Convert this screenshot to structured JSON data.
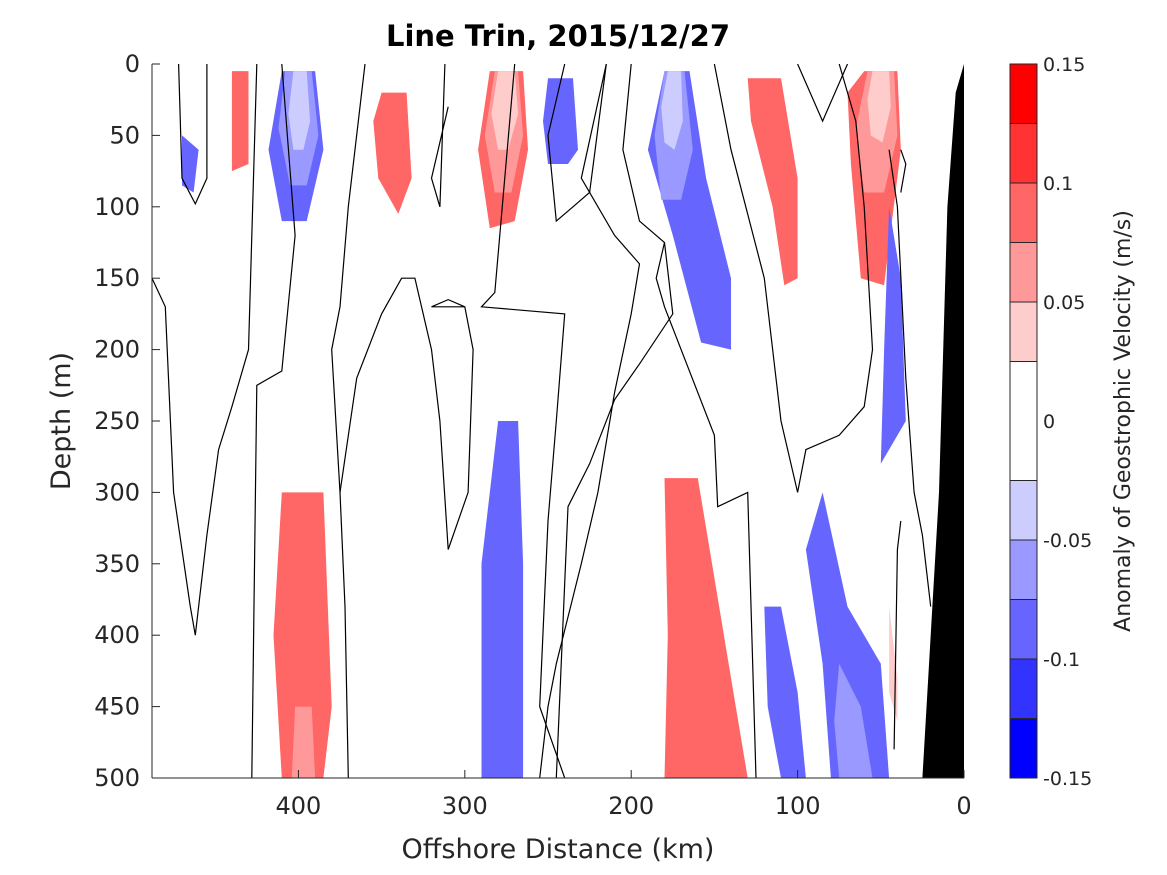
{
  "chart_data": {
    "type": "heatmap",
    "subtype": "filled contour section",
    "title": "Line Trin, 2015/12/27",
    "xlabel": "Offshore Distance (km)",
    "ylabel": "Depth (m)",
    "xlim": [
      488,
      0
    ],
    "x_reversed": true,
    "ylim": [
      0,
      500
    ],
    "y_reversed": true,
    "x_ticks": [
      400,
      300,
      200,
      100,
      0
    ],
    "y_ticks": [
      0,
      50,
      100,
      150,
      200,
      250,
      300,
      350,
      400,
      450,
      500
    ],
    "colorbar": {
      "label": "Anomaly of Geostrophic Velocity (m/s)",
      "limits": [
        -0.15,
        0.15
      ],
      "tick_labels": [
        "0.15",
        "0.1",
        "0.05",
        "0",
        "-0.05",
        "-0.1",
        "-0.15"
      ],
      "tick_values": [
        0.15,
        0.1,
        0.05,
        0,
        -0.05,
        -0.1,
        -0.15
      ],
      "levels": [
        -0.15,
        -0.125,
        -0.1,
        -0.075,
        -0.05,
        -0.025,
        0.025,
        0.05,
        0.075,
        0.1,
        0.125,
        0.15
      ],
      "band_colors": [
        "#0000ff",
        "#3333ff",
        "#6666ff",
        "#9999ff",
        "#ccccff",
        "#ffffff",
        "#ffcccc",
        "#ff9999",
        "#ff6666",
        "#ff3333",
        "#ff0000"
      ]
    },
    "features": [
      {
        "kind": "negative",
        "level": 3,
        "points": [
          [
            410,
            5
          ],
          [
            390,
            5
          ],
          [
            385,
            60
          ],
          [
            395,
            110
          ],
          [
            410,
            110
          ],
          [
            418,
            60
          ]
        ]
      },
      {
        "kind": "negative",
        "level": 2,
        "points": [
          [
            408,
            5
          ],
          [
            392,
            5
          ],
          [
            388,
            50
          ],
          [
            395,
            85
          ],
          [
            405,
            85
          ],
          [
            412,
            45
          ]
        ]
      },
      {
        "kind": "negative",
        "level": 1,
        "points": [
          [
            403,
            5
          ],
          [
            395,
            5
          ],
          [
            393,
            40
          ],
          [
            397,
            60
          ],
          [
            403,
            60
          ],
          [
            406,
            35
          ]
        ]
      },
      {
        "kind": "positive",
        "level": 3,
        "points": [
          [
            285,
            5
          ],
          [
            265,
            5
          ],
          [
            262,
            60
          ],
          [
            270,
            110
          ],
          [
            285,
            115
          ],
          [
            292,
            60
          ]
        ]
      },
      {
        "kind": "positive",
        "level": 2,
        "points": [
          [
            282,
            5
          ],
          [
            268,
            5
          ],
          [
            265,
            50
          ],
          [
            272,
            90
          ],
          [
            282,
            90
          ],
          [
            288,
            50
          ]
        ]
      },
      {
        "kind": "positive",
        "level": 1,
        "points": [
          [
            280,
            5
          ],
          [
            270,
            5
          ],
          [
            268,
            35
          ],
          [
            274,
            60
          ],
          [
            280,
            60
          ],
          [
            284,
            35
          ]
        ]
      },
      {
        "kind": "negative",
        "level": 3,
        "points": [
          [
            180,
            5
          ],
          [
            165,
            5
          ],
          [
            155,
            80
          ],
          [
            140,
            150
          ],
          [
            140,
            200
          ],
          [
            158,
            195
          ],
          [
            175,
            120
          ],
          [
            190,
            60
          ]
        ]
      },
      {
        "kind": "negative",
        "level": 2,
        "points": [
          [
            180,
            5
          ],
          [
            168,
            5
          ],
          [
            163,
            60
          ],
          [
            170,
            95
          ],
          [
            182,
            95
          ],
          [
            186,
            50
          ]
        ]
      },
      {
        "kind": "negative",
        "level": 1,
        "points": [
          [
            178,
            5
          ],
          [
            170,
            5
          ],
          [
            169,
            40
          ],
          [
            174,
            60
          ],
          [
            180,
            55
          ],
          [
            182,
            30
          ]
        ]
      },
      {
        "kind": "positive",
        "level": 3,
        "points": [
          [
            60,
            5
          ],
          [
            40,
            5
          ],
          [
            38,
            60
          ],
          [
            48,
            155
          ],
          [
            62,
            150
          ],
          [
            68,
            70
          ],
          [
            70,
            20
          ]
        ]
      },
      {
        "kind": "positive",
        "level": 2,
        "points": [
          [
            58,
            5
          ],
          [
            42,
            5
          ],
          [
            40,
            50
          ],
          [
            48,
            90
          ],
          [
            60,
            90
          ],
          [
            65,
            45
          ]
        ]
      },
      {
        "kind": "positive",
        "level": 1,
        "points": [
          [
            55,
            5
          ],
          [
            45,
            5
          ],
          [
            44,
            30
          ],
          [
            49,
            55
          ],
          [
            56,
            50
          ],
          [
            58,
            25
          ]
        ]
      },
      {
        "kind": "positive",
        "level": 3,
        "points": [
          [
            350,
            20
          ],
          [
            335,
            20
          ],
          [
            332,
            80
          ],
          [
            340,
            105
          ],
          [
            352,
            80
          ],
          [
            355,
            40
          ]
        ]
      },
      {
        "kind": "negative",
        "level": 3,
        "points": [
          [
            250,
            10
          ],
          [
            235,
            10
          ],
          [
            232,
            60
          ],
          [
            238,
            70
          ],
          [
            250,
            70
          ],
          [
            253,
            40
          ]
        ]
      },
      {
        "kind": "positive",
        "level": 3,
        "points": [
          [
            130,
            10
          ],
          [
            110,
            10
          ],
          [
            100,
            80
          ],
          [
            100,
            150
          ],
          [
            108,
            155
          ],
          [
            115,
            100
          ],
          [
            128,
            40
          ]
        ]
      },
      {
        "kind": "negative",
        "level": 3,
        "points": [
          [
            85,
            300
          ],
          [
            70,
            380
          ],
          [
            50,
            420
          ],
          [
            45,
            500
          ],
          [
            80,
            500
          ],
          [
            85,
            420
          ],
          [
            95,
            340
          ]
        ]
      },
      {
        "kind": "negative",
        "level": 2,
        "points": [
          [
            75,
            420
          ],
          [
            62,
            450
          ],
          [
            55,
            500
          ],
          [
            75,
            500
          ],
          [
            78,
            460
          ]
        ]
      },
      {
        "kind": "positive",
        "level": 3,
        "points": [
          [
            410,
            300
          ],
          [
            385,
            300
          ],
          [
            380,
            450
          ],
          [
            385,
            500
          ],
          [
            410,
            500
          ],
          [
            415,
            400
          ]
        ]
      },
      {
        "kind": "positive",
        "level": 2,
        "points": [
          [
            402,
            450
          ],
          [
            392,
            450
          ],
          [
            390,
            500
          ],
          [
            404,
            500
          ]
        ]
      },
      {
        "kind": "negative",
        "level": 3,
        "points": [
          [
            280,
            250
          ],
          [
            268,
            250
          ],
          [
            265,
            350
          ],
          [
            265,
            500
          ],
          [
            290,
            500
          ],
          [
            290,
            350
          ]
        ]
      },
      {
        "kind": "positive",
        "level": 3,
        "points": [
          [
            180,
            290
          ],
          [
            160,
            290
          ],
          [
            140,
            430
          ],
          [
            130,
            500
          ],
          [
            180,
            500
          ],
          [
            178,
            400
          ]
        ]
      },
      {
        "kind": "negative",
        "level": 3,
        "points": [
          [
            120,
            380
          ],
          [
            110,
            380
          ],
          [
            100,
            440
          ],
          [
            95,
            500
          ],
          [
            110,
            500
          ],
          [
            118,
            450
          ]
        ]
      },
      {
        "kind": "negative",
        "level": 3,
        "points": [
          [
            45,
            100
          ],
          [
            38,
            150
          ],
          [
            35,
            250
          ],
          [
            50,
            280
          ],
          [
            48,
            200
          ]
        ]
      },
      {
        "kind": "negative",
        "level": 3,
        "points": [
          [
            470,
            50
          ],
          [
            460,
            60
          ],
          [
            463,
            90
          ],
          [
            470,
            85
          ]
        ]
      },
      {
        "kind": "positive",
        "level": 3,
        "points": [
          [
            440,
            5
          ],
          [
            430,
            5
          ],
          [
            430,
            70
          ],
          [
            440,
            75
          ]
        ]
      },
      {
        "kind": "positive",
        "level": 1,
        "points": [
          [
            45,
            380
          ],
          [
            40,
            430
          ],
          [
            40,
            460
          ],
          [
            45,
            440
          ]
        ]
      }
    ],
    "zero_contours": [
      [
        [
          472,
          0
        ],
        [
          470,
          80
        ],
        [
          462,
          98
        ],
        [
          455,
          80
        ],
        [
          455,
          0
        ]
      ],
      [
        [
          488,
          150
        ],
        [
          480,
          170
        ],
        [
          475,
          300
        ],
        [
          465,
          380
        ],
        [
          462,
          400
        ],
        [
          455,
          330
        ],
        [
          448,
          270
        ],
        [
          440,
          240
        ],
        [
          430,
          200
        ],
        [
          425,
          0
        ]
      ],
      [
        [
          410,
          0
        ],
        [
          402,
          120
        ],
        [
          410,
          215
        ],
        [
          425,
          225
        ],
        [
          428,
          500
        ]
      ],
      [
        [
          360,
          0
        ],
        [
          370,
          100
        ],
        [
          375,
          170
        ],
        [
          380,
          200
        ],
        [
          375,
          300
        ],
        [
          372,
          380
        ],
        [
          370,
          500
        ]
      ],
      [
        [
          310,
          30
        ],
        [
          320,
          80
        ],
        [
          315,
          100
        ],
        [
          312,
          0
        ]
      ],
      [
        [
          310,
          340
        ],
        [
          315,
          250
        ],
        [
          320,
          200
        ],
        [
          330,
          150
        ],
        [
          338,
          150
        ],
        [
          350,
          175
        ],
        [
          365,
          220
        ],
        [
          375,
          300
        ]
      ],
      [
        [
          310,
          340
        ],
        [
          298,
          300
        ],
        [
          295,
          200
        ],
        [
          300,
          170
        ],
        [
          310,
          165
        ],
        [
          320,
          170
        ],
        [
          300,
          170
        ]
      ],
      [
        [
          270,
          0
        ],
        [
          282,
          160
        ],
        [
          290,
          170
        ],
        [
          240,
          175
        ],
        [
          245,
          250
        ],
        [
          250,
          320
        ],
        [
          255,
          450
        ],
        [
          240,
          500
        ]
      ],
      [
        [
          240,
          0
        ],
        [
          250,
          50
        ],
        [
          245,
          110
        ],
        [
          235,
          100
        ],
        [
          225,
          90
        ],
        [
          215,
          0
        ]
      ],
      [
        [
          215,
          0
        ],
        [
          230,
          80
        ],
        [
          210,
          120
        ],
        [
          195,
          140
        ],
        [
          200,
          175
        ],
        [
          210,
          230
        ],
        [
          220,
          300
        ],
        [
          230,
          350
        ],
        [
          245,
          420
        ],
        [
          250,
          450
        ],
        [
          255,
          500
        ]
      ],
      [
        [
          200,
          0
        ],
        [
          205,
          60
        ],
        [
          195,
          110
        ],
        [
          180,
          125
        ],
        [
          175,
          175
        ],
        [
          195,
          210
        ],
        [
          210,
          235
        ],
        [
          225,
          280
        ],
        [
          238,
          310
        ],
        [
          245,
          500
        ]
      ],
      [
        [
          180,
          125
        ],
        [
          185,
          150
        ],
        [
          180,
          170
        ],
        [
          150,
          260
        ],
        [
          148,
          310
        ],
        [
          130,
          300
        ],
        [
          125,
          500
        ]
      ],
      [
        [
          150,
          0
        ],
        [
          140,
          60
        ],
        [
          120,
          150
        ],
        [
          110,
          250
        ],
        [
          100,
          300
        ],
        [
          95,
          270
        ],
        [
          75,
          260
        ],
        [
          60,
          240
        ],
        [
          55,
          200
        ],
        [
          60,
          100
        ],
        [
          65,
          40
        ],
        [
          75,
          0
        ]
      ],
      [
        [
          45,
          60
        ],
        [
          40,
          100
        ],
        [
          35,
          220
        ],
        [
          30,
          300
        ],
        [
          25,
          330
        ],
        [
          20,
          380
        ]
      ],
      [
        [
          100,
          0
        ],
        [
          85,
          40
        ],
        [
          70,
          0
        ]
      ],
      [
        [
          38,
          60
        ],
        [
          35,
          70
        ],
        [
          38,
          90
        ]
      ],
      [
        [
          38,
          320
        ],
        [
          40,
          340
        ],
        [
          42,
          480
        ]
      ]
    ],
    "land": {
      "label": "",
      "points": [
        [
          0,
          0
        ],
        [
          0,
          500
        ],
        [
          25,
          500
        ],
        [
          15,
          300
        ],
        [
          10,
          100
        ],
        [
          5,
          20
        ]
      ]
    }
  }
}
